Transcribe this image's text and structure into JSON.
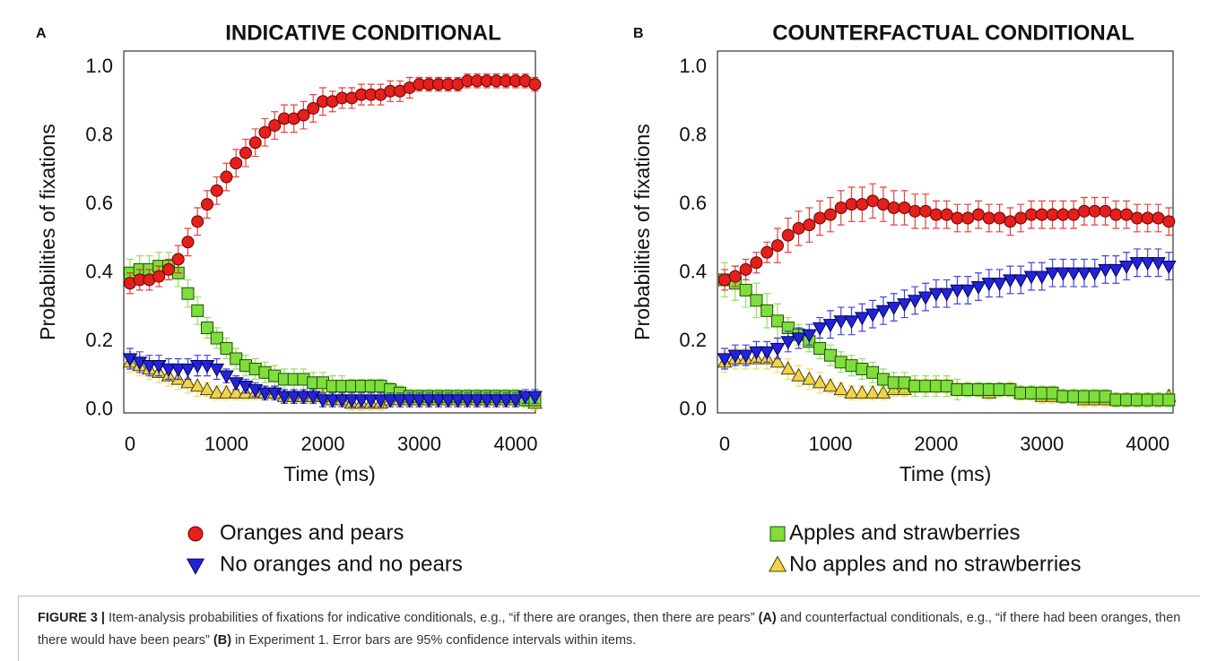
{
  "chart_data": [
    {
      "type": "scatter",
      "panel": "A",
      "title": "INDICATIVE CONDITIONAL",
      "xlabel": "Time (ms)",
      "ylabel": "Probabilities of fixations",
      "xlim": [
        -65,
        4205
      ],
      "ylim": [
        -0.008,
        1.047
      ],
      "xticks": [
        0,
        1000,
        2000,
        3000,
        4000
      ],
      "yticks": [
        {
          "value": 0,
          "label": "0.0"
        },
        0.2,
        0.4,
        0.6,
        0.8,
        {
          "value": 1,
          "label": "1.0"
        }
      ],
      "x": [
        0,
        100,
        200,
        300,
        400,
        500,
        600,
        700,
        800,
        900,
        1000,
        1100,
        1200,
        1300,
        1400,
        1500,
        1600,
        1700,
        1800,
        1900,
        2000,
        2100,
        2200,
        2300,
        2400,
        2500,
        2600,
        2700,
        2800,
        2900,
        3000,
        3100,
        3200,
        3300,
        3400,
        3500,
        3600,
        3700,
        3800,
        3900,
        4000,
        4100,
        4200
      ],
      "series": [
        {
          "name": "Oranges and pears",
          "color": "#e3201c",
          "marker": "circle",
          "values": [
            0.37,
            0.38,
            0.38,
            0.39,
            0.41,
            0.44,
            0.49,
            0.55,
            0.6,
            0.64,
            0.68,
            0.72,
            0.75,
            0.78,
            0.81,
            0.83,
            0.85,
            0.85,
            0.86,
            0.88,
            0.9,
            0.9,
            0.91,
            0.91,
            0.92,
            0.92,
            0.92,
            0.93,
            0.93,
            0.94,
            0.95,
            0.95,
            0.95,
            0.95,
            0.95,
            0.96,
            0.96,
            0.96,
            0.96,
            0.96,
            0.96,
            0.96,
            0.95
          ],
          "errors": [
            0.03,
            0.03,
            0.03,
            0.03,
            0.03,
            0.04,
            0.04,
            0.04,
            0.04,
            0.04,
            0.04,
            0.04,
            0.04,
            0.04,
            0.04,
            0.04,
            0.04,
            0.04,
            0.04,
            0.04,
            0.04,
            0.03,
            0.03,
            0.03,
            0.03,
            0.03,
            0.03,
            0.03,
            0.03,
            0.03,
            0.02,
            0.02,
            0.02,
            0.02,
            0.02,
            0.02,
            0.02,
            0.02,
            0.02,
            0.02,
            0.02,
            0.02,
            0.02
          ]
        },
        {
          "name": "No oranges and no pears",
          "color": "#2323d6",
          "marker": "triangle-down",
          "values": [
            0.15,
            0.14,
            0.13,
            0.13,
            0.12,
            0.12,
            0.12,
            0.13,
            0.13,
            0.12,
            0.1,
            0.08,
            0.07,
            0.06,
            0.05,
            0.05,
            0.04,
            0.04,
            0.04,
            0.04,
            0.03,
            0.03,
            0.03,
            0.03,
            0.03,
            0.03,
            0.03,
            0.03,
            0.03,
            0.03,
            0.03,
            0.03,
            0.03,
            0.03,
            0.03,
            0.03,
            0.03,
            0.03,
            0.03,
            0.03,
            0.03,
            0.04,
            0.04
          ],
          "errors": [
            0.03,
            0.03,
            0.03,
            0.03,
            0.03,
            0.03,
            0.03,
            0.03,
            0.03,
            0.03,
            0.02,
            0.02,
            0.02,
            0.02,
            0.02,
            0.02,
            0.02,
            0.02,
            0.02,
            0.02,
            0.02,
            0.02,
            0.02,
            0.02,
            0.02,
            0.02,
            0.02,
            0.02,
            0.02,
            0.02,
            0.02,
            0.02,
            0.02,
            0.02,
            0.02,
            0.02,
            0.02,
            0.02,
            0.02,
            0.02,
            0.02,
            0.02,
            0.02
          ]
        },
        {
          "name": "Apples and strawberries",
          "color": "#7ede3c",
          "marker": "square",
          "values": [
            0.4,
            0.41,
            0.41,
            0.42,
            0.42,
            0.4,
            0.34,
            0.29,
            0.24,
            0.21,
            0.18,
            0.15,
            0.13,
            0.12,
            0.11,
            0.1,
            0.09,
            0.09,
            0.09,
            0.08,
            0.08,
            0.07,
            0.07,
            0.07,
            0.07,
            0.07,
            0.07,
            0.06,
            0.05,
            0.04,
            0.04,
            0.04,
            0.04,
            0.04,
            0.04,
            0.04,
            0.04,
            0.04,
            0.04,
            0.04,
            0.04,
            0.03,
            0.03
          ],
          "errors": [
            0.04,
            0.04,
            0.04,
            0.04,
            0.04,
            0.04,
            0.04,
            0.04,
            0.03,
            0.03,
            0.03,
            0.03,
            0.03,
            0.03,
            0.03,
            0.03,
            0.03,
            0.03,
            0.03,
            0.03,
            0.03,
            0.03,
            0.03,
            0.02,
            0.02,
            0.02,
            0.02,
            0.02,
            0.02,
            0.02,
            0.02,
            0.02,
            0.02,
            0.02,
            0.02,
            0.02,
            0.02,
            0.02,
            0.02,
            0.02,
            0.02,
            0.02,
            0.02
          ]
        },
        {
          "name": "No apples and no strawberries",
          "color": "#f2d44a",
          "marker": "triangle-up",
          "values": [
            0.14,
            0.13,
            0.12,
            0.11,
            0.1,
            0.09,
            0.08,
            0.07,
            0.06,
            0.05,
            0.05,
            0.05,
            0.05,
            0.05,
            0.05,
            0.05,
            0.04,
            0.04,
            0.04,
            0.04,
            0.04,
            0.03,
            0.03,
            0.02,
            0.02,
            0.02,
            0.02,
            0.03,
            0.03,
            0.03,
            0.03,
            0.03,
            0.03,
            0.03,
            0.03,
            0.03,
            0.03,
            0.03,
            0.03,
            0.03,
            0.03,
            0.03,
            0.02
          ],
          "errors": [
            0.03,
            0.03,
            0.03,
            0.03,
            0.03,
            0.03,
            0.03,
            0.03,
            0.02,
            0.02,
            0.02,
            0.02,
            0.02,
            0.02,
            0.02,
            0.02,
            0.02,
            0.02,
            0.02,
            0.02,
            0.02,
            0.02,
            0.02,
            0.02,
            0.02,
            0.02,
            0.02,
            0.02,
            0.02,
            0.02,
            0.02,
            0.02,
            0.02,
            0.02,
            0.02,
            0.02,
            0.02,
            0.02,
            0.02,
            0.02,
            0.02,
            0.02,
            0.02
          ]
        }
      ]
    },
    {
      "type": "scatter",
      "panel": "B",
      "title": "COUNTERFACTUAL CONDITIONAL",
      "xlabel": "Time (ms)",
      "ylabel": "Probabilities of fixations",
      "xlim": [
        -68,
        4240
      ],
      "ylim": [
        -0.008,
        1.047
      ],
      "xticks": [
        0,
        1000,
        2000,
        3000,
        4000
      ],
      "yticks": [
        {
          "value": 0,
          "label": "0.0"
        },
        0.2,
        0.4,
        0.6,
        0.8,
        {
          "value": 1,
          "label": "1.0"
        }
      ],
      "x": [
        0,
        100,
        200,
        300,
        400,
        500,
        600,
        700,
        800,
        900,
        1000,
        1100,
        1200,
        1300,
        1400,
        1500,
        1600,
        1700,
        1800,
        1900,
        2000,
        2100,
        2200,
        2300,
        2400,
        2500,
        2600,
        2700,
        2800,
        2900,
        3000,
        3100,
        3200,
        3300,
        3400,
        3500,
        3600,
        3700,
        3800,
        3900,
        4000,
        4100,
        4200
      ],
      "series": [
        {
          "color": "#e3201c",
          "marker": "circle",
          "values": [
            0.38,
            0.39,
            0.41,
            0.43,
            0.46,
            0.48,
            0.51,
            0.53,
            0.54,
            0.56,
            0.57,
            0.59,
            0.6,
            0.6,
            0.61,
            0.6,
            0.59,
            0.59,
            0.58,
            0.58,
            0.57,
            0.57,
            0.56,
            0.56,
            0.57,
            0.56,
            0.56,
            0.55,
            0.56,
            0.57,
            0.57,
            0.57,
            0.57,
            0.57,
            0.58,
            0.58,
            0.58,
            0.57,
            0.57,
            0.56,
            0.56,
            0.56,
            0.55
          ],
          "errors": [
            0.03,
            0.03,
            0.03,
            0.03,
            0.03,
            0.05,
            0.05,
            0.05,
            0.05,
            0.05,
            0.05,
            0.05,
            0.05,
            0.05,
            0.05,
            0.05,
            0.05,
            0.05,
            0.05,
            0.05,
            0.04,
            0.04,
            0.04,
            0.04,
            0.04,
            0.04,
            0.04,
            0.04,
            0.04,
            0.04,
            0.04,
            0.04,
            0.04,
            0.04,
            0.04,
            0.04,
            0.04,
            0.04,
            0.04,
            0.04,
            0.04,
            0.04,
            0.04
          ]
        },
        {
          "color": "#2323d6",
          "marker": "triangle-down",
          "values": [
            0.15,
            0.16,
            0.16,
            0.17,
            0.17,
            0.18,
            0.2,
            0.21,
            0.22,
            0.24,
            0.25,
            0.26,
            0.26,
            0.27,
            0.28,
            0.29,
            0.3,
            0.31,
            0.32,
            0.33,
            0.34,
            0.34,
            0.35,
            0.35,
            0.36,
            0.37,
            0.37,
            0.38,
            0.38,
            0.39,
            0.39,
            0.4,
            0.4,
            0.4,
            0.4,
            0.4,
            0.41,
            0.41,
            0.42,
            0.43,
            0.43,
            0.43,
            0.42
          ],
          "errors": [
            0.03,
            0.03,
            0.03,
            0.03,
            0.03,
            0.03,
            0.03,
            0.03,
            0.03,
            0.03,
            0.04,
            0.04,
            0.04,
            0.04,
            0.04,
            0.04,
            0.04,
            0.04,
            0.04,
            0.04,
            0.04,
            0.04,
            0.04,
            0.04,
            0.04,
            0.04,
            0.04,
            0.04,
            0.04,
            0.04,
            0.04,
            0.04,
            0.04,
            0.04,
            0.04,
            0.04,
            0.04,
            0.04,
            0.04,
            0.04,
            0.04,
            0.04,
            0.04
          ]
        },
        {
          "color": "#7ede3c",
          "marker": "square",
          "values": [
            0.38,
            0.37,
            0.35,
            0.32,
            0.29,
            0.26,
            0.24,
            0.22,
            0.2,
            0.18,
            0.16,
            0.14,
            0.13,
            0.12,
            0.11,
            0.09,
            0.08,
            0.08,
            0.07,
            0.07,
            0.07,
            0.07,
            0.06,
            0.06,
            0.06,
            0.06,
            0.06,
            0.06,
            0.05,
            0.05,
            0.05,
            0.05,
            0.04,
            0.04,
            0.04,
            0.04,
            0.04,
            0.03,
            0.03,
            0.03,
            0.03,
            0.03,
            0.03
          ],
          "errors": [
            0.05,
            0.05,
            0.05,
            0.05,
            0.05,
            0.05,
            0.03,
            0.03,
            0.03,
            0.03,
            0.03,
            0.03,
            0.03,
            0.03,
            0.03,
            0.03,
            0.03,
            0.03,
            0.03,
            0.03,
            0.03,
            0.03,
            0.03,
            0.02,
            0.02,
            0.02,
            0.02,
            0.02,
            0.02,
            0.02,
            0.02,
            0.02,
            0.02,
            0.02,
            0.02,
            0.02,
            0.02,
            0.02,
            0.02,
            0.02,
            0.02,
            0.02,
            0.02
          ]
        },
        {
          "color": "#f2d44a",
          "marker": "triangle-up",
          "values": [
            0.14,
            0.15,
            0.15,
            0.15,
            0.15,
            0.14,
            0.12,
            0.1,
            0.09,
            0.08,
            0.07,
            0.06,
            0.05,
            0.05,
            0.05,
            0.05,
            0.06,
            0.06,
            0.07,
            0.07,
            0.07,
            0.07,
            0.06,
            0.06,
            0.06,
            0.05,
            0.06,
            0.06,
            0.05,
            0.05,
            0.04,
            0.04,
            0.04,
            0.04,
            0.03,
            0.03,
            0.03,
            0.03,
            0.03,
            0.03,
            0.03,
            0.03,
            0.04
          ],
          "errors": [
            0.03,
            0.03,
            0.03,
            0.03,
            0.03,
            0.03,
            0.03,
            0.03,
            0.03,
            0.03,
            0.02,
            0.02,
            0.02,
            0.02,
            0.02,
            0.02,
            0.02,
            0.02,
            0.02,
            0.02,
            0.02,
            0.02,
            0.02,
            0.02,
            0.02,
            0.02,
            0.02,
            0.02,
            0.02,
            0.02,
            0.02,
            0.02,
            0.02,
            0.02,
            0.02,
            0.02,
            0.02,
            0.02,
            0.02,
            0.02,
            0.02,
            0.02,
            0.02
          ]
        }
      ]
    }
  ],
  "caption": {
    "figure_label": "FIGURE 3 |",
    "text_1": "Item-analysis probabilities of fixations for indicative conditionals, e.g., “if there are oranges, then there are pears”",
    "ref_a": "(A)",
    "text_2": "and counterfactual conditionals, e.g., “if there had been oranges, then there would have been pears”",
    "ref_b": "(B)",
    "text_3": "in Experiment 1. Error bars are 95% confidence intervals within items."
  }
}
